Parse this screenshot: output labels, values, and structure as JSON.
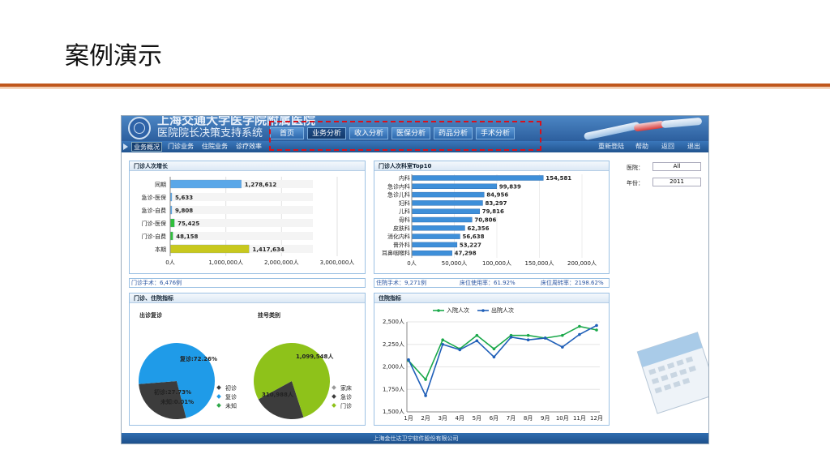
{
  "slide": {
    "title": "案例演示"
  },
  "header": {
    "org_name": "上海交通大学医学院附属医院",
    "system_name": "医院院长决策支持系统",
    "top_nav": [
      "首页",
      "业务分析",
      "收入分析",
      "医保分析",
      "药品分析",
      "手术分析"
    ],
    "top_nav_active": "业务分析",
    "sub_nav": [
      "业务概况",
      "门诊业务",
      "住院业务",
      "诊疗效率"
    ],
    "sub_nav_active": "业务概况",
    "right_links": [
      "重新登陆",
      "帮助",
      "返回",
      "退出"
    ]
  },
  "filters": {
    "hospital_label": "医院：",
    "hospital_value": "All",
    "year_label": "年份：",
    "year_value": "2011"
  },
  "panels": {
    "growth_title": "门诊人次增长",
    "top10_title": "门诊人次科室Top10",
    "pie_title": "门诊、住院指标",
    "inpatient_title": "住院指标"
  },
  "info_bars": {
    "outpatient_surgery": "门诊手术：6,476例",
    "inpatient_surgery": "住院手术：9,271例",
    "bed_usage": "床位使用率：61.92%",
    "bed_turnover": "床位周转率：2198.62%"
  },
  "colors": {
    "line_in": "#1aa84a",
    "line_out": "#1f5fb8",
    "pie_blue": "#1f9be8",
    "pie_dark": "#3c3c3c",
    "pie_green": "#8ec21a"
  },
  "footer": "上海金仕达卫宁软件股份有限公司",
  "chart_data": [
    {
      "type": "bar",
      "orientation": "horizontal",
      "categories": [
        "同期",
        "急诊-医保",
        "急诊-自费",
        "门诊-医保",
        "门诊-自费",
        "本期"
      ],
      "values": [
        1278612,
        5633,
        9808,
        75425,
        48158,
        1417634
      ],
      "value_labels": [
        "1,278,612",
        "5,633",
        "9,808",
        "75,425",
        "48,158",
        "1,417,634"
      ],
      "bar_colors": [
        "#5aa7e8",
        "#5aa7e8",
        "#5aa7e8",
        "#2fbf3a",
        "#2fbf3a",
        "#c8c81e"
      ],
      "xlim": [
        0,
        3000000
      ],
      "x_ticks": [
        "0人",
        "1,000,000人",
        "2,000,000人",
        "3,000,000人"
      ]
    },
    {
      "type": "bar",
      "orientation": "horizontal",
      "categories": [
        "内科",
        "急诊内科",
        "急诊儿科",
        "妇科",
        "儿科",
        "骨科",
        "皮肤科",
        "消化内科",
        "普外科",
        "耳鼻咽喉科"
      ],
      "values": [
        154581,
        99839,
        84956,
        83297,
        79816,
        70806,
        62356,
        56638,
        53227,
        47298
      ],
      "value_labels": [
        "154,581",
        "99,839",
        "84,956",
        "83,297",
        "79,816",
        "70,806",
        "62,356",
        "56,638",
        "53,227",
        "47,298"
      ],
      "xlim": [
        0,
        200000
      ],
      "x_ticks": [
        "0人",
        "50,000人",
        "100,000人",
        "150,000人",
        "200,000人"
      ]
    },
    {
      "type": "pie",
      "title": "出诊复诊",
      "slices": [
        {
          "name": "初诊",
          "value": 27.73,
          "label": "初诊:27.73%",
          "color": "#3c3c3c"
        },
        {
          "name": "复诊",
          "value": 72.26,
          "label": "复诊:72.26%",
          "color": "#1f9be8"
        },
        {
          "name": "未知",
          "value": 0.01,
          "label": "未知:0.01%",
          "color": "#2fa84a"
        }
      ],
      "legend": [
        "初诊",
        "复诊",
        "未知"
      ],
      "legend_colors": [
        "#3c3c3c",
        "#1f9be8",
        "#2fa84a"
      ]
    },
    {
      "type": "pie",
      "title": "挂号类别",
      "slices": [
        {
          "name": "家床",
          "value": 0.01,
          "label": "",
          "color": "#999999"
        },
        {
          "name": "急诊",
          "value": 310988,
          "label": "310,988人",
          "color": "#3c3c3c"
        },
        {
          "name": "门诊",
          "value": 1099548,
          "label": "1,099,548人",
          "color": "#8ec21a"
        }
      ],
      "legend": [
        "家床",
        "急诊",
        "门诊"
      ],
      "legend_colors": [
        "#999999",
        "#3c3c3c",
        "#8ec21a"
      ]
    },
    {
      "type": "line",
      "categories": [
        "1月",
        "2月",
        "3月",
        "4月",
        "5月",
        "6月",
        "7月",
        "8月",
        "9月",
        "10月",
        "11月",
        "12月"
      ],
      "series": [
        {
          "name": "入院人次",
          "values": [
            2070,
            1860,
            2300,
            2200,
            2350,
            2200,
            2350,
            2350,
            2320,
            2350,
            2450,
            2410
          ]
        },
        {
          "name": "出院人次",
          "values": [
            2080,
            1680,
            2250,
            2190,
            2290,
            2110,
            2330,
            2300,
            2320,
            2220,
            2360,
            2460
          ]
        }
      ],
      "ylim": [
        1500,
        2500
      ],
      "y_ticks": [
        "1,500人",
        "1,750人",
        "2,000人",
        "2,250人",
        "2,500人"
      ]
    }
  ]
}
